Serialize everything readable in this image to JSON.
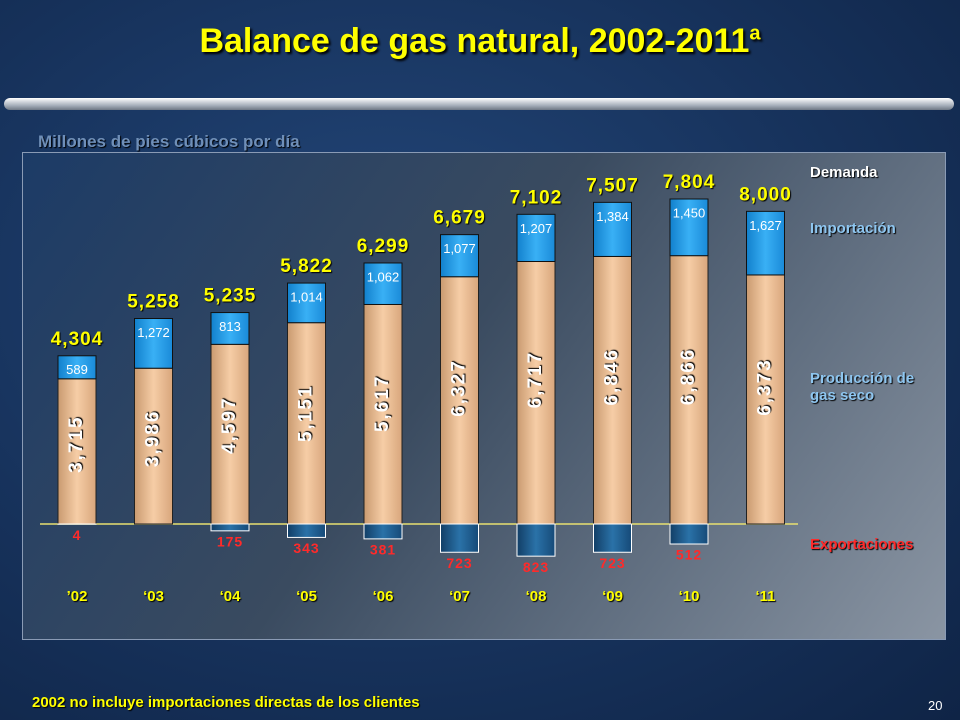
{
  "title": "Balance de gas natural, 2002-2011",
  "title_superscript": "a",
  "footnote": "2002 no incluye importaciones directas de los clientes",
  "page_number": "20",
  "chart_data": {
    "type": "stacked-bar",
    "subtitle": "Millones de pies cúbicos por día",
    "categories": [
      "’02",
      "‘03",
      "‘04",
      "‘05",
      "‘06",
      "‘07",
      "‘08",
      "‘09",
      "‘10",
      "‘11"
    ],
    "series": [
      {
        "name": "Producción de gas seco",
        "color": "#f2c49a",
        "values": [
          3715,
          3986,
          4597,
          5151,
          5617,
          6327,
          6717,
          6846,
          6866,
          6373
        ],
        "value_labels": [
          "3,715",
          "3,986",
          "4,597",
          "5,151",
          "5,617",
          "6,327",
          "6,717",
          "6,846",
          "6,866",
          "6,373"
        ]
      },
      {
        "name": "Importación",
        "color": "#1e9be8",
        "values": [
          589,
          1272,
          813,
          1014,
          1062,
          1077,
          1207,
          1384,
          1450,
          1627
        ],
        "value_labels": [
          "589",
          "1,272",
          "813",
          "1,014",
          "1,062",
          "1,077",
          "1,207",
          "1,384",
          "1,450",
          "1,627"
        ]
      },
      {
        "name": "Exportaciones",
        "color": "#1b5585",
        "values": [
          4,
          null,
          175,
          343,
          381,
          723,
          823,
          723,
          512,
          null
        ]
      },
      {
        "name": "Demanda",
        "color": "#ffff00",
        "values": [
          4304,
          5258,
          5235,
          5822,
          6299,
          6679,
          7102,
          7507,
          7804,
          8000
        ],
        "value_labels": [
          "4,304",
          "5,258",
          "5,235",
          "5,822",
          "6,299",
          "6,679",
          "7,102",
          "7,507",
          "7,804",
          "8,000"
        ]
      }
    ]
  }
}
